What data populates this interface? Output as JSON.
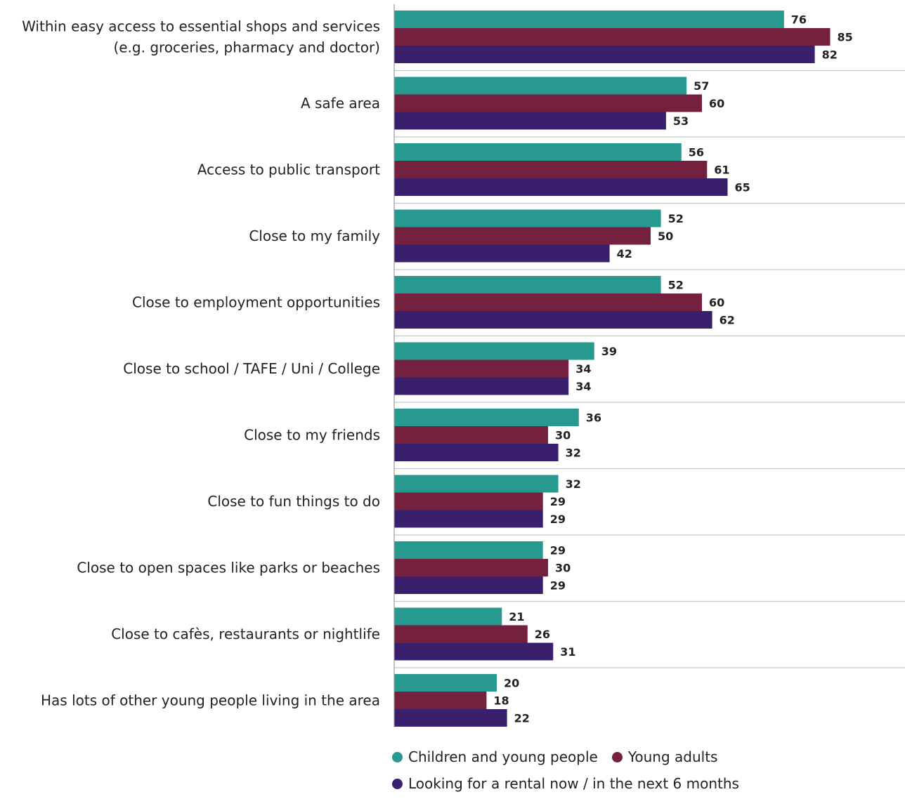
{
  "chart_data": {
    "type": "bar",
    "orientation": "horizontal",
    "title": "",
    "xlabel": "",
    "ylabel": "",
    "xlim": [
      0,
      100
    ],
    "grid": false,
    "legend_position": "bottom",
    "categories": [
      [
        "Within easy access to essential shops and services",
        "(e.g. groceries, pharmacy and doctor)"
      ],
      [
        "A safe area"
      ],
      [
        "Access to public transport"
      ],
      [
        "Close to my family"
      ],
      [
        "Close to employment opportunities"
      ],
      [
        "Close to school / TAFE / Uni / College"
      ],
      [
        "Close to my friends"
      ],
      [
        "Close to fun things to do"
      ],
      [
        "Close to open spaces like parks or beaches"
      ],
      [
        "Close to cafès, restaurants or nightlife"
      ],
      [
        "Has lots of other young people living in the area"
      ]
    ],
    "series": [
      {
        "name": "Children and young people",
        "color": "#27998f",
        "values": [
          76,
          57,
          56,
          52,
          52,
          39,
          36,
          32,
          29,
          21,
          20
        ]
      },
      {
        "name": "Young adults",
        "color": "#74213f",
        "values": [
          85,
          60,
          61,
          50,
          60,
          34,
          30,
          29,
          30,
          26,
          18
        ]
      },
      {
        "name": "Looking for a rental now / in the next 6 months",
        "color": "#3a1f6d",
        "values": [
          82,
          53,
          65,
          42,
          62,
          34,
          32,
          29,
          29,
          31,
          22
        ]
      }
    ]
  }
}
